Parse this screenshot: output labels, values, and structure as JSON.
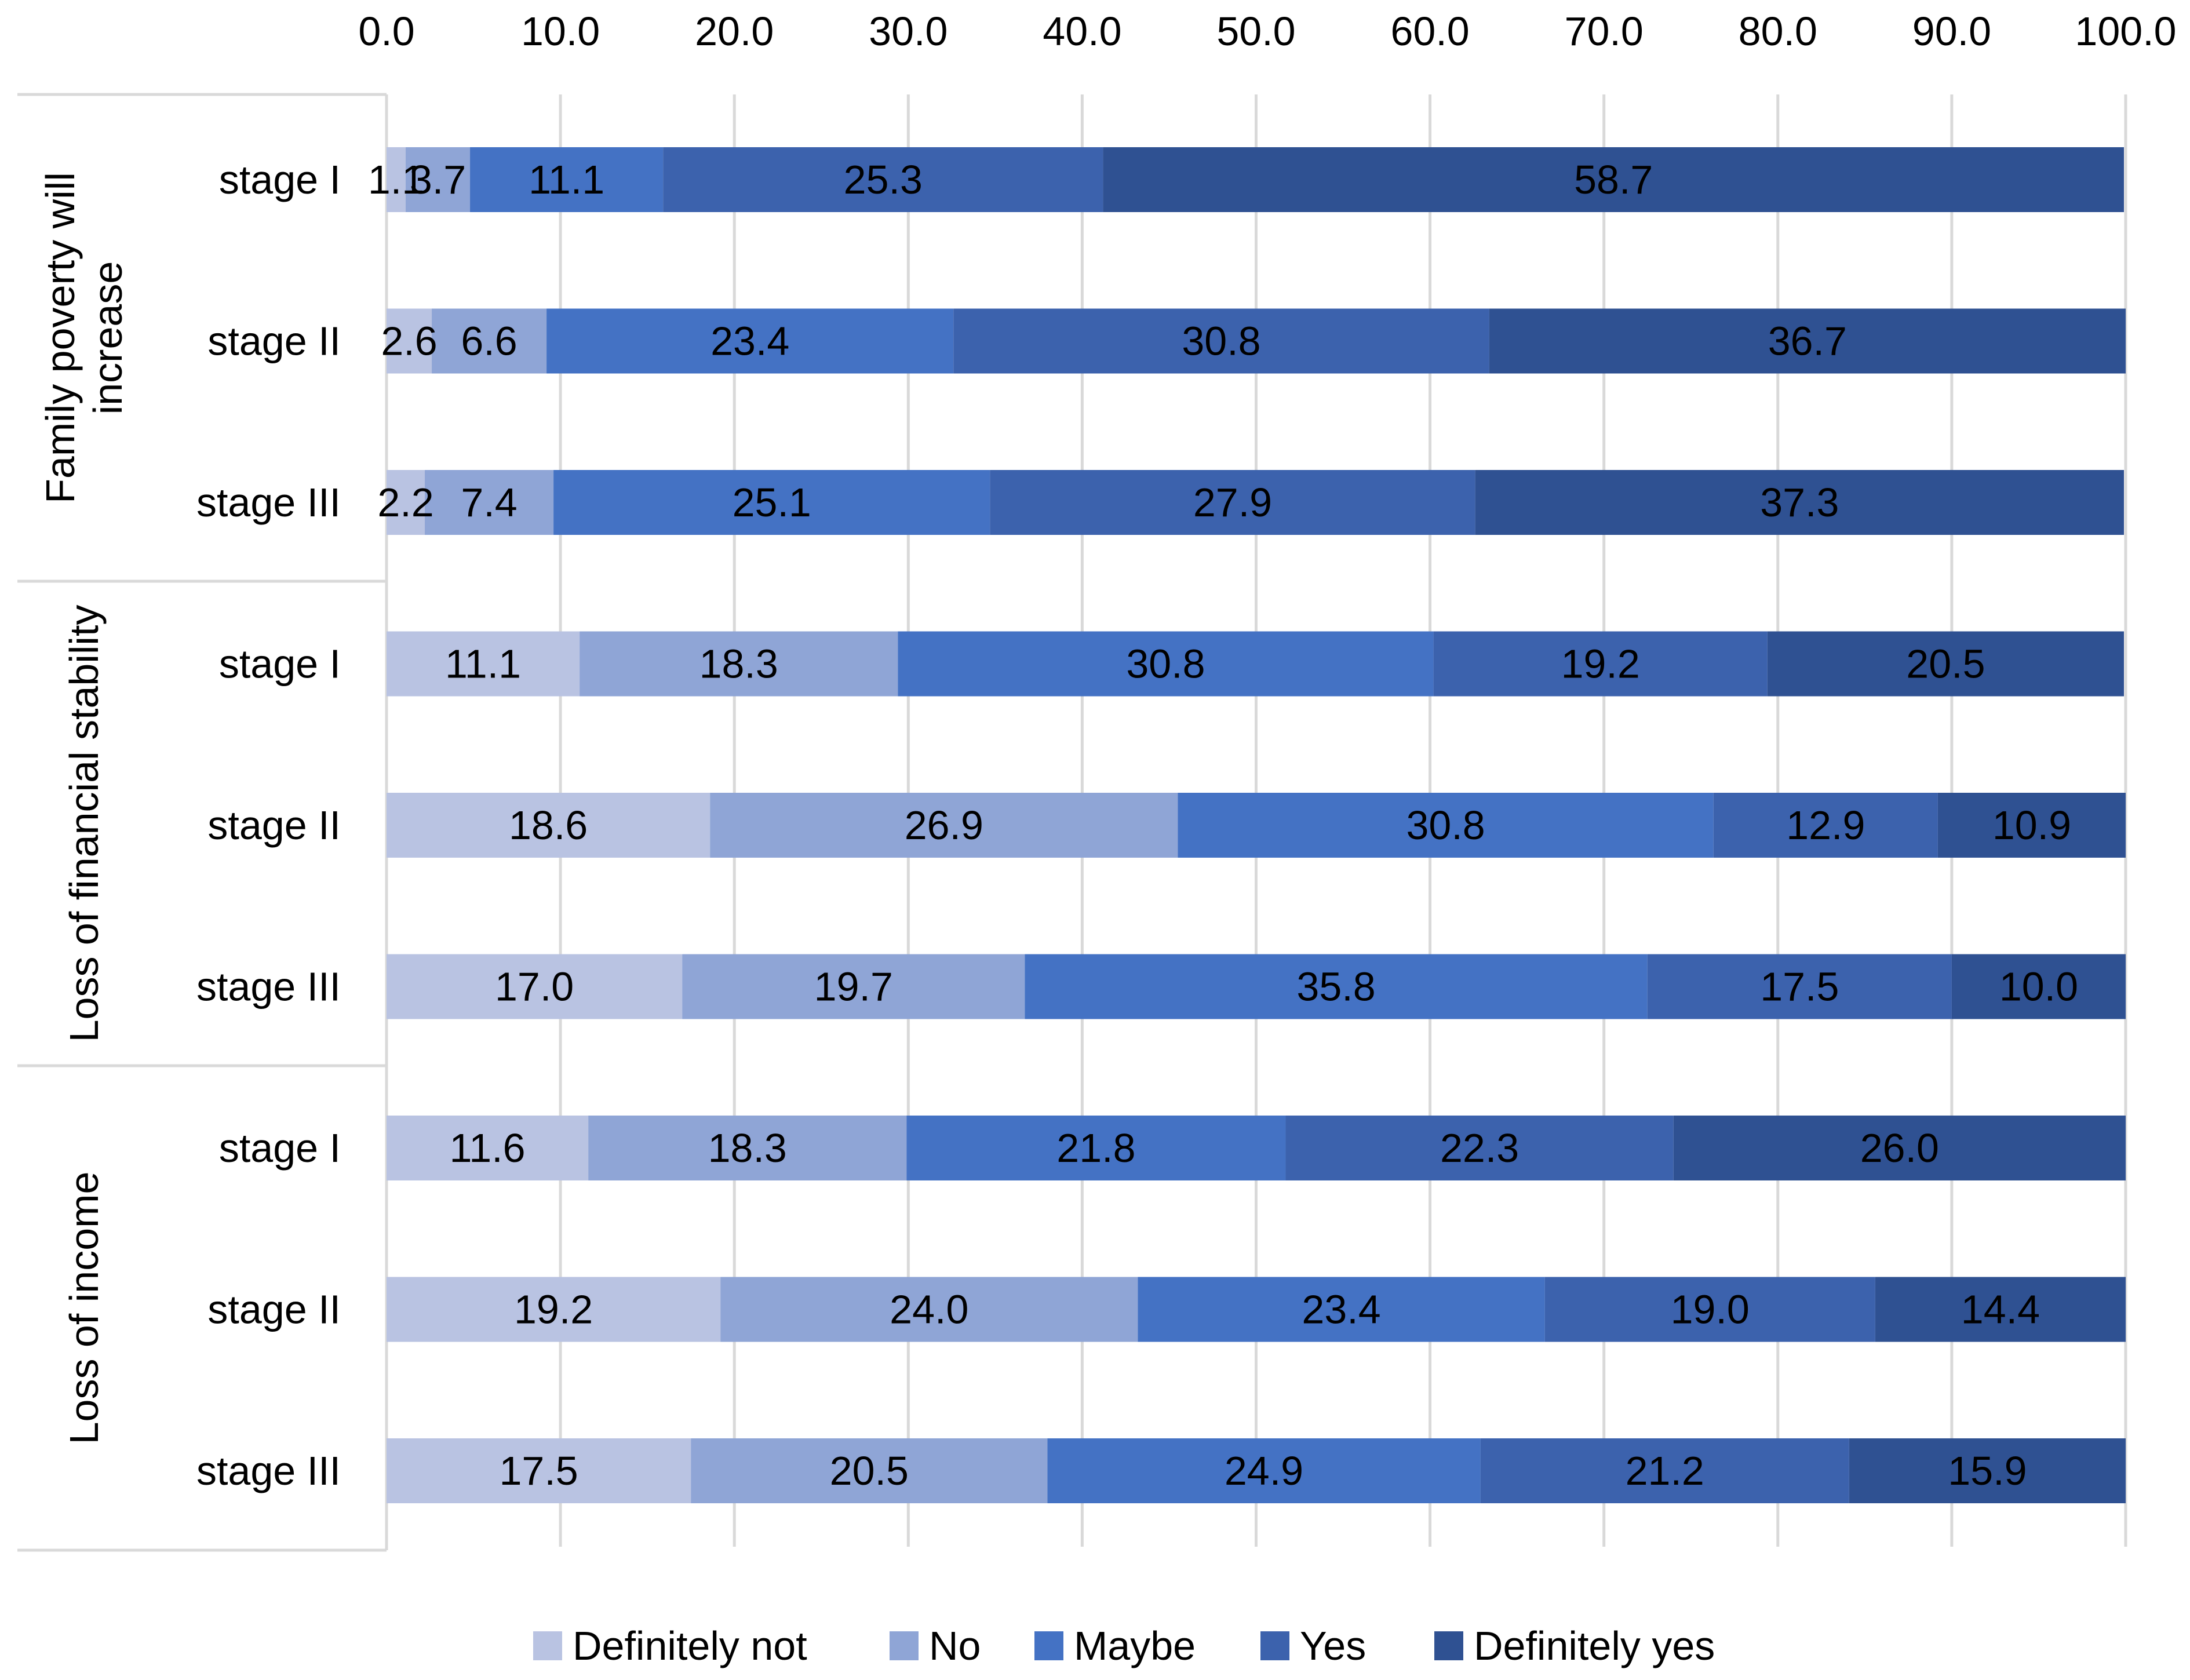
{
  "chart_data": {
    "type": "bar",
    "orientation": "horizontal",
    "stacked": true,
    "xlim": [
      0,
      100
    ],
    "xticks": [
      0,
      10,
      20,
      30,
      40,
      50,
      60,
      70,
      80,
      90,
      100
    ],
    "xtick_labels": [
      "0.0",
      "10.0",
      "20.0",
      "30.0",
      "40.0",
      "50.0",
      "60.0",
      "70.0",
      "80.0",
      "90.0",
      "100.0"
    ],
    "x_axis_position": "top",
    "grid": true,
    "legend_position": "bottom",
    "series_names": [
      "Definitely not",
      "No",
      "Maybe",
      "Yes",
      "Definitely yes"
    ],
    "colors": [
      "#b9c3e2",
      "#8fa5d6",
      "#4472c4",
      "#3c62ad",
      "#2f5192"
    ],
    "groups": [
      {
        "label": "Family poverty will increase",
        "label_lines": [
          "Family poverty will",
          "increase"
        ],
        "rows": [
          {
            "label": "stage I",
            "values": [
              1.1,
              3.7,
              11.1,
              25.3,
              58.7
            ],
            "value_labels": [
              "1.1",
              "3.7",
              "11.1",
              "25.3",
              "58.7"
            ]
          },
          {
            "label": "stage II",
            "values": [
              2.6,
              6.6,
              23.4,
              30.8,
              36.7
            ],
            "value_labels": [
              "2.6",
              "6.6",
              "23.4",
              "30.8",
              "36.7"
            ]
          },
          {
            "label": "stage III",
            "values": [
              2.2,
              7.4,
              25.1,
              27.9,
              37.3
            ],
            "value_labels": [
              "2.2",
              "7.4",
              "25.1",
              "27.9",
              "37.3"
            ]
          }
        ]
      },
      {
        "label": "Loss of financial stability",
        "label_lines": [
          "Loss of financial stability"
        ],
        "rows": [
          {
            "label": "stage I",
            "values": [
              11.1,
              18.3,
              30.8,
              19.2,
              20.5
            ],
            "value_labels": [
              "11.1",
              "18.3",
              "30.8",
              "19.2",
              "20.5"
            ]
          },
          {
            "label": "stage II",
            "values": [
              18.6,
              26.9,
              30.8,
              12.9,
              10.9
            ],
            "value_labels": [
              "18.6",
              "26.9",
              "30.8",
              "12.9",
              "10.9"
            ]
          },
          {
            "label": "stage III",
            "values": [
              17.0,
              19.7,
              35.8,
              17.5,
              10.0
            ],
            "value_labels": [
              "17.0",
              "19.7",
              "35.8",
              "17.5",
              "10.0"
            ]
          }
        ]
      },
      {
        "label": "Loss of income",
        "label_lines": [
          "Loss of income"
        ],
        "rows": [
          {
            "label": "stage I",
            "values": [
              11.6,
              18.3,
              21.8,
              22.3,
              26.0
            ],
            "value_labels": [
              "11.6",
              "18.3",
              "21.8",
              "22.3",
              "26.0"
            ]
          },
          {
            "label": "stage II",
            "values": [
              19.2,
              24.0,
              23.4,
              19.0,
              14.4
            ],
            "value_labels": [
              "19.2",
              "24.0",
              "23.4",
              "19.0",
              "14.4"
            ]
          },
          {
            "label": "stage III",
            "values": [
              17.5,
              20.5,
              24.9,
              21.2,
              15.9
            ],
            "value_labels": [
              "17.5",
              "20.5",
              "24.9",
              "21.2",
              "15.9"
            ]
          }
        ]
      }
    ]
  }
}
